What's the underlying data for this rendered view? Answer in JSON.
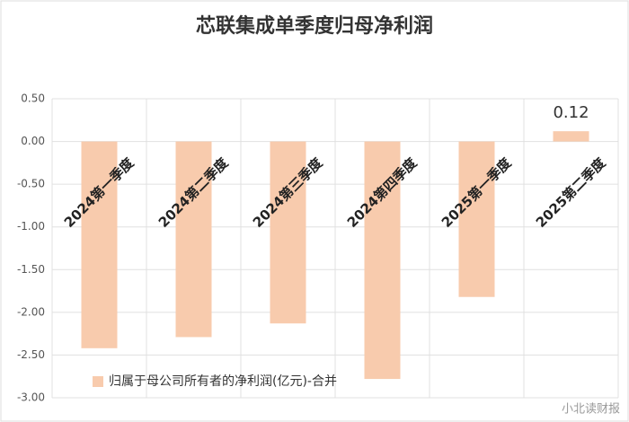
{
  "chart_data": {
    "type": "bar",
    "title": "芯联集成单季度归母净利润",
    "categories": [
      "2024第一季度",
      "2024第二季度",
      "2024第三季度",
      "2024第四季度",
      "2025第一季度",
      "2025第二季度"
    ],
    "series": [
      {
        "name": "归属于母公司所有者的净利润(亿元)-合并",
        "color": "#f8cbad",
        "values": [
          -2.42,
          -2.29,
          -2.13,
          -2.78,
          -1.82,
          0.12
        ],
        "value_labels": [
          null,
          null,
          null,
          null,
          null,
          "0.12"
        ]
      }
    ],
    "ylim": [
      -3,
      0.5
    ],
    "yticks": [
      {
        "value": 0.5,
        "label": "0.50"
      },
      {
        "value": 0,
        "label": "0.00"
      },
      {
        "value": -0.5,
        "label": "-0.50"
      },
      {
        "value": -1,
        "label": "-1.00"
      },
      {
        "value": -1.5,
        "label": "-1.50"
      },
      {
        "value": -2,
        "label": "-2.00"
      },
      {
        "value": -2.5,
        "label": "-2.50"
      },
      {
        "value": -3,
        "label": "-3.00"
      }
    ],
    "grid": true,
    "legend": "bottom-left",
    "watermark": "小北读财报"
  }
}
